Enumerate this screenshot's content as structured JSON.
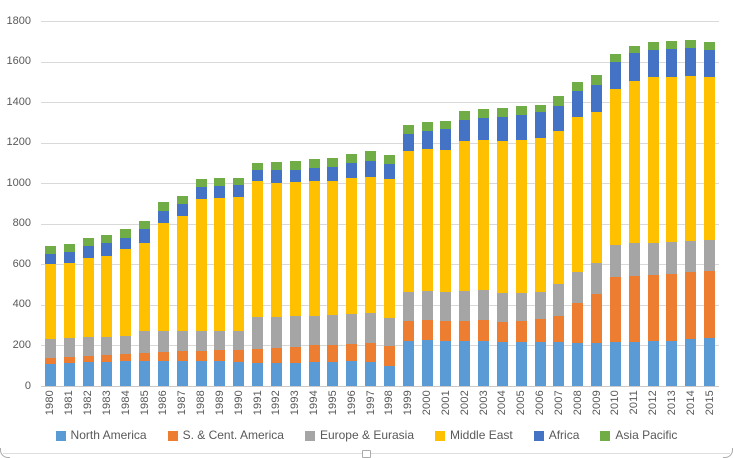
{
  "chart_data": {
    "type": "bar",
    "stacked": true,
    "title": "",
    "xlabel": "",
    "ylabel": "",
    "categories": [
      "1980",
      "1981",
      "1982",
      "1983",
      "1984",
      "1985",
      "1986",
      "1987",
      "1988",
      "1989",
      "1990",
      "1991",
      "1992",
      "1993",
      "1994",
      "1995",
      "1996",
      "1997",
      "1998",
      "1999",
      "2000",
      "2001",
      "2002",
      "2003",
      "2004",
      "2005",
      "2006",
      "2007",
      "2008",
      "2009",
      "2010",
      "2011",
      "2012",
      "2013",
      "2014",
      "2015"
    ],
    "series": [
      {
        "name": "North America",
        "color": "#5B9BD5",
        "values": [
          110,
          115,
          118,
          120,
          122,
          125,
          125,
          125,
          124,
          122,
          120,
          115,
          115,
          115,
          118,
          118,
          122,
          118,
          100,
          224,
          225,
          221,
          220,
          221,
          215,
          215,
          217,
          215,
          212,
          212,
          215,
          219,
          221,
          223,
          232,
          238
        ]
      },
      {
        "name": "S. & Cent. America",
        "color": "#ED7D31",
        "values": [
          30,
          30,
          32,
          33,
          35,
          40,
          45,
          48,
          51,
          55,
          60,
          70,
          73,
          77,
          82,
          84,
          83,
          92,
          95,
          98,
          102,
          100,
          102,
          103,
          102,
          104,
          112,
          129,
          195,
          243,
          322,
          323,
          326,
          327,
          330,
          329
        ]
      },
      {
        "name": "Europe & Eurasia",
        "color": "#A5A5A5",
        "values": [
          93,
          92,
          90,
          89,
          88,
          105,
          102,
          99,
          97,
          95,
          92,
          153,
          154,
          151,
          147,
          148,
          150,
          150,
          140,
          144,
          140,
          143,
          149,
          149,
          143,
          142,
          135,
          157,
          153,
          152,
          158,
          162,
          160,
          159,
          155,
          155
        ]
      },
      {
        "name": "Middle East",
        "color": "#FFC000",
        "values": [
          367,
          371,
          390,
          399,
          433,
          434,
          533,
          566,
          650,
          655,
          658,
          672,
          661,
          662,
          663,
          663,
          672,
          670,
          684,
          693,
          700,
          698,
          737,
          739,
          750,
          754,
          761,
          757,
          767,
          742,
          770,
          802,
          815,
          817,
          812,
          804
        ]
      },
      {
        "name": "Africa",
        "color": "#4472C4",
        "values": [
          50,
          55,
          61,
          65,
          52,
          71,
          60,
          60,
          58,
          61,
          63,
          55,
          60,
          61,
          66,
          66,
          74,
          79,
          77,
          86,
          91,
          104,
          103,
          109,
          117,
          122,
          124,
          124,
          126,
          137,
          135,
          135,
          136,
          137,
          137,
          129
        ]
      },
      {
        "name": "Asia Pacific",
        "color": "#70AD47",
        "values": [
          40,
          39,
          39,
          39,
          42,
          40,
          45,
          40,
          42,
          38,
          35,
          35,
          42,
          44,
          44,
          47,
          45,
          51,
          43,
          41,
          42,
          41,
          46,
          46,
          45,
          45,
          39,
          46,
          44,
          47,
          36,
          38,
          38,
          38,
          39,
          43
        ]
      }
    ],
    "ylim": [
      0,
      1800
    ],
    "y_tick_step": 200,
    "y_ticks": [
      "0",
      "200",
      "400",
      "600",
      "800",
      "1000",
      "1200",
      "1400",
      "1600",
      "1800"
    ],
    "grid": true,
    "legend_position": "bottom",
    "axis_text_color": "#595959",
    "gridline_color": "#D9D9D9"
  }
}
